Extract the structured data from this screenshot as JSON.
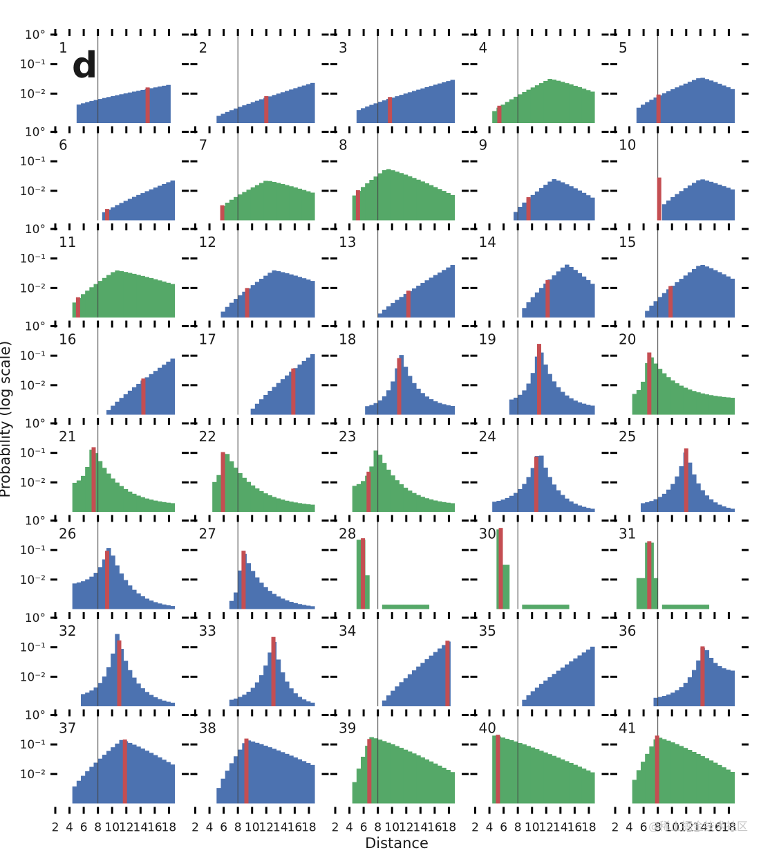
{
  "chart_data": {
    "type": "bar",
    "figure_label": "d",
    "xlabel": "Distance",
    "ylabel": "Probability (log scale)",
    "x_ticks": [
      "2",
      "4",
      "6",
      "8",
      "10",
      "12",
      "14",
      "16",
      "18"
    ],
    "y_ticks": [
      "10°",
      "10⁻¹",
      "10⁻²"
    ],
    "xlim": [
      2,
      20
    ],
    "ylim_log10": [
      -3,
      0
    ],
    "threshold": 8,
    "colors": {
      "blue": "#4c72b0",
      "green": "#55a868",
      "red": "#c44e52",
      "threshold": "#444444"
    },
    "watermark": "@稀土掘金技术社区",
    "panels": [
      {
        "id": "1",
        "color": "blue",
        "marker": 15.0,
        "dist": "ramp",
        "p": [
          5,
          18,
          -2.4,
          -1.7
        ]
      },
      {
        "id": "2",
        "color": "blue",
        "marker": 12.0,
        "dist": "ramp",
        "p": [
          5,
          19,
          -2.8,
          -1.6
        ]
      },
      {
        "id": "3",
        "color": "blue",
        "marker": 9.7,
        "dist": "ramp",
        "p": [
          5,
          19,
          -2.6,
          -1.5
        ]
      },
      {
        "id": "4",
        "color": "green",
        "marker": 5.4,
        "dist": "hump",
        "p": [
          4.3,
          18.7,
          12.5,
          -1.5,
          -2.7,
          -1.95
        ]
      },
      {
        "id": "5",
        "color": "blue",
        "marker": 8.1,
        "dist": "hump",
        "p": [
          5,
          19,
          14,
          -1.45,
          -2.55,
          -1.9
        ]
      },
      {
        "id": "6",
        "color": "blue",
        "marker": 9.3,
        "dist": "ramp",
        "p": [
          8.5,
          18.5,
          -2.8,
          -1.65
        ]
      },
      {
        "id": "7",
        "color": "green",
        "marker": 5.8,
        "dist": "hump",
        "p": [
          5.6,
          19,
          12,
          -1.65,
          -2.6,
          -2.1
        ]
      },
      {
        "id": "8",
        "color": "green",
        "marker": 5.2,
        "dist": "hump",
        "p": [
          4.3,
          19,
          9.2,
          -1.25,
          -2.3,
          -2.2
        ]
      },
      {
        "id": "9",
        "color": "blue",
        "marker": 9.5,
        "dist": "hump",
        "p": [
          7.5,
          19,
          13,
          -1.6,
          -2.8,
          -2.3
        ]
      },
      {
        "id": "10",
        "color": "blue",
        "marker": 8.2,
        "dist": "hump",
        "p": [
          8.4,
          19,
          14,
          -1.6,
          -2.6,
          -2.0
        ]
      },
      {
        "id": "11",
        "color": "green",
        "marker": 5.2,
        "dist": "hump",
        "p": [
          4.4,
          19,
          10.5,
          -1.4,
          -2.6,
          -1.9
        ]
      },
      {
        "id": "12",
        "color": "blue",
        "marker": 9.3,
        "dist": "hump",
        "p": [
          5.5,
          19,
          13,
          -1.4,
          -2.95,
          -1.8
        ]
      },
      {
        "id": "13",
        "color": "blue",
        "marker": 12.3,
        "dist": "ramp",
        "p": [
          8.0,
          19,
          -2.95,
          -1.15
        ]
      },
      {
        "id": "14",
        "color": "blue",
        "marker": 12.2,
        "dist": "hump",
        "p": [
          8.4,
          18.7,
          14.8,
          -1.2,
          -2.9,
          -1.9
        ]
      },
      {
        "id": "15",
        "color": "blue",
        "marker": 9.8,
        "dist": "hump",
        "p": [
          6.2,
          19,
          14.0,
          -1.2,
          -2.9,
          -1.75
        ]
      },
      {
        "id": "16",
        "color": "blue",
        "marker": 14.4,
        "dist": "ramp",
        "p": [
          9.0,
          18.5,
          -3.0,
          -1.1
        ]
      },
      {
        "id": "17",
        "color": "blue",
        "marker": 15.8,
        "dist": "ramp",
        "p": [
          9.5,
          19,
          -3.0,
          -0.85
        ]
      },
      {
        "id": "18",
        "color": "blue",
        "marker": 11.0,
        "dist": "peak",
        "p": [
          6.3,
          19,
          11.2,
          -0.9,
          -2.8,
          -2.8
        ]
      },
      {
        "id": "19",
        "color": "blue",
        "marker": 11.0,
        "dist": "peak",
        "p": [
          6.6,
          19,
          11.0,
          -0.65,
          -2.6,
          -2.8
        ]
      },
      {
        "id": "20",
        "color": "green",
        "marker": 6.8,
        "dist": "peak",
        "p": [
          4.3,
          19,
          6.7,
          -0.9,
          -2.4,
          -2.5
        ]
      },
      {
        "id": "21",
        "color": "green",
        "marker": 7.4,
        "dist": "peak",
        "p": [
          4.3,
          19,
          7.2,
          -0.75,
          -2.1,
          -2.8
        ]
      },
      {
        "id": "22",
        "color": "green",
        "marker": 5.9,
        "dist": "peak",
        "p": [
          4.3,
          19,
          6.0,
          -0.8,
          -2.1,
          -2.85
        ]
      },
      {
        "id": "23",
        "color": "green",
        "marker": 6.7,
        "dist": "peak",
        "p": [
          4.3,
          19,
          7.8,
          -0.8,
          -2.2,
          -2.8
        ]
      },
      {
        "id": "24",
        "color": "blue",
        "marker": 10.6,
        "dist": "peak",
        "p": [
          4.3,
          19,
          11.0,
          -0.85,
          -2.75,
          -3.0
        ]
      },
      {
        "id": "25",
        "color": "blue",
        "marker": 12.0,
        "dist": "peak",
        "p": [
          5.5,
          19,
          12.0,
          -0.9,
          -2.8,
          -3.0
        ]
      },
      {
        "id": "26",
        "color": "blue",
        "marker": 9.3,
        "dist": "peak",
        "p": [
          4.3,
          19,
          9.6,
          -0.85,
          -2.2,
          -3.0
        ]
      },
      {
        "id": "27",
        "color": "blue",
        "marker": 8.8,
        "dist": "peak",
        "p": [
          6.6,
          19,
          8.6,
          -0.95,
          -2.9,
          -3.0
        ]
      },
      {
        "id": "28",
        "color": "green",
        "marker": 5.9,
        "dist": "spike",
        "p": [
          5.0,
          19,
          5.7,
          -0.65,
          -2.95,
          -2.95
        ]
      },
      {
        "id": "30",
        "color": "green",
        "marker": 5.6,
        "dist": "spike",
        "p": [
          4.8,
          19,
          5.2,
          -0.3,
          -2.9,
          -2.95
        ]
      },
      {
        "id": "31",
        "color": "green",
        "marker": 6.8,
        "dist": "spike",
        "p": [
          4.5,
          19,
          6.5,
          -0.75,
          -2.9,
          -2.95
        ]
      },
      {
        "id": "32",
        "color": "blue",
        "marker": 11.0,
        "dist": "peak",
        "p": [
          5.5,
          19,
          10.7,
          -0.55,
          -2.7,
          -3.0
        ]
      },
      {
        "id": "33",
        "color": "blue",
        "marker": 13.0,
        "dist": "peak",
        "p": [
          6.5,
          19,
          13.0,
          -0.7,
          -2.9,
          -3.0
        ]
      },
      {
        "id": "34",
        "color": "blue",
        "marker": 17.8,
        "dist": "ramp",
        "p": [
          8.5,
          18.2,
          -2.95,
          -0.75
        ]
      },
      {
        "id": "35",
        "color": "blue",
        "marker": null,
        "dist": "ramp",
        "p": [
          8.7,
          19,
          -2.85,
          -0.9
        ]
      },
      {
        "id": "36",
        "color": "blue",
        "marker": 14.3,
        "dist": "peak",
        "p": [
          7.5,
          19,
          14.5,
          -0.85,
          -2.8,
          -1.85
        ]
      },
      {
        "id": "37",
        "color": "blue",
        "marker": 11.8,
        "dist": "hump",
        "p": [
          4.3,
          19,
          11.3,
          -0.85,
          -2.6,
          -1.75
        ]
      },
      {
        "id": "38",
        "color": "blue",
        "marker": 9.2,
        "dist": "hump",
        "p": [
          5.0,
          19,
          9.2,
          -0.85,
          -2.7,
          -1.75
        ]
      },
      {
        "id": "39",
        "color": "green",
        "marker": 6.8,
        "dist": "hump",
        "p": [
          4.3,
          19,
          7.0,
          -0.75,
          -2.7,
          -2.0
        ]
      },
      {
        "id": "40",
        "color": "green",
        "marker": 5.2,
        "dist": "hump",
        "p": [
          4.3,
          19,
          4.7,
          -0.7,
          -2.7,
          -2.0
        ]
      },
      {
        "id": "41",
        "color": "green",
        "marker": 7.9,
        "dist": "hump",
        "p": [
          4.3,
          19,
          7.9,
          -0.75,
          -2.5,
          -2.0
        ]
      }
    ]
  }
}
